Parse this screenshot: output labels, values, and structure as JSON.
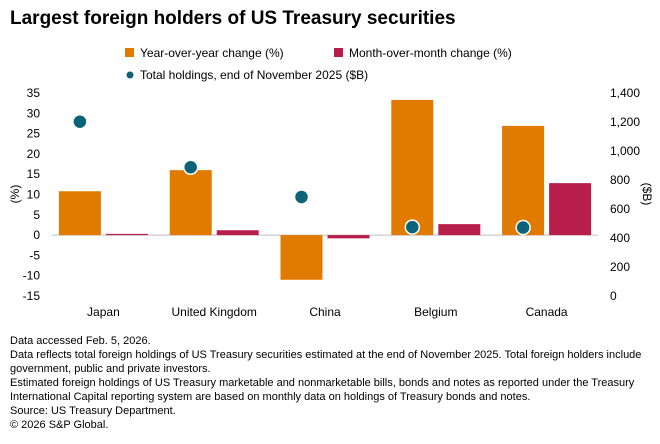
{
  "title": "Largest foreign holders of US Treasury securities",
  "colors": {
    "yoy": "#e07b00",
    "mom": "#b81e4a",
    "total": "#0b6377",
    "axis": "#000000",
    "zero": "#bfbfbf"
  },
  "chart_data": {
    "type": "bar",
    "categories": [
      "Japan",
      "United Kingdom",
      "China",
      "Belgium",
      "Canada"
    ],
    "series": [
      {
        "name": "Year-over-year change (%)",
        "axis": "left",
        "type": "bar",
        "values": [
          10.8,
          16.0,
          -11.0,
          33.3,
          26.9
        ]
      },
      {
        "name": "Month-over-month change (%)",
        "axis": "left",
        "type": "bar",
        "values": [
          0.3,
          1.2,
          -0.8,
          2.7,
          12.8
        ]
      },
      {
        "name": "Total holdings, end of November 2025 ($B)",
        "axis": "right",
        "type": "scatter",
        "values": [
          1202,
          888,
          683,
          475,
          472
        ]
      }
    ],
    "ylabel": "(%)",
    "y2label": "($B)",
    "ylim": [
      -15,
      35
    ],
    "y2lim": [
      0,
      1400
    ],
    "yticks": [
      "35",
      "30",
      "25",
      "20",
      "15",
      "10",
      "5",
      "0",
      "-5",
      "-10",
      "-15"
    ],
    "y2ticks": [
      "1,400",
      "1,200",
      "1,000",
      "800",
      "600",
      "400",
      "200",
      "0"
    ],
    "legend": "top"
  },
  "notes": [
    "Data accessed Feb. 5, 2026.",
    "Data reflects total foreign holdings of US Treasury securities estimated at the end of November 2025. Total foreign holders include government, public and private investors.",
    "Estimated foreign holdings of US Treasury marketable and nonmarketable bills, bonds and notes as reported under the Treasury International Capital reporting system are based on monthly data on holdings of Treasury bonds and notes.",
    "Source: US Treasury Department.",
    "© 2026 S&P Global."
  ]
}
